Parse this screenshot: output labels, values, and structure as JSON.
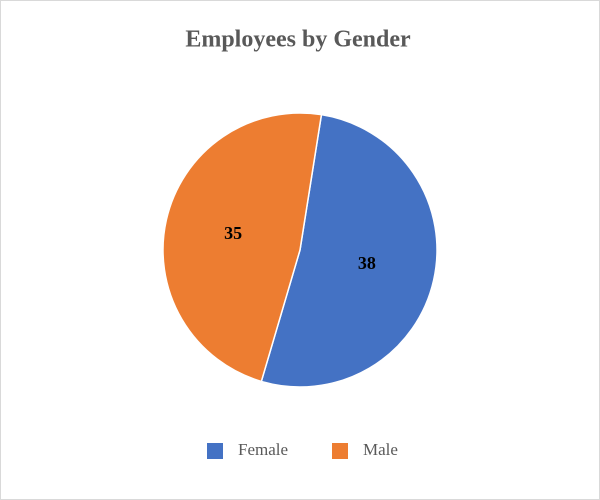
{
  "chart_data": {
    "type": "pie",
    "title": "Employees by Gender",
    "categories": [
      "Female",
      "Male"
    ],
    "values": [
      38,
      35
    ],
    "colors": [
      "#4472c4",
      "#ed7d31"
    ],
    "legend": "bottom"
  }
}
